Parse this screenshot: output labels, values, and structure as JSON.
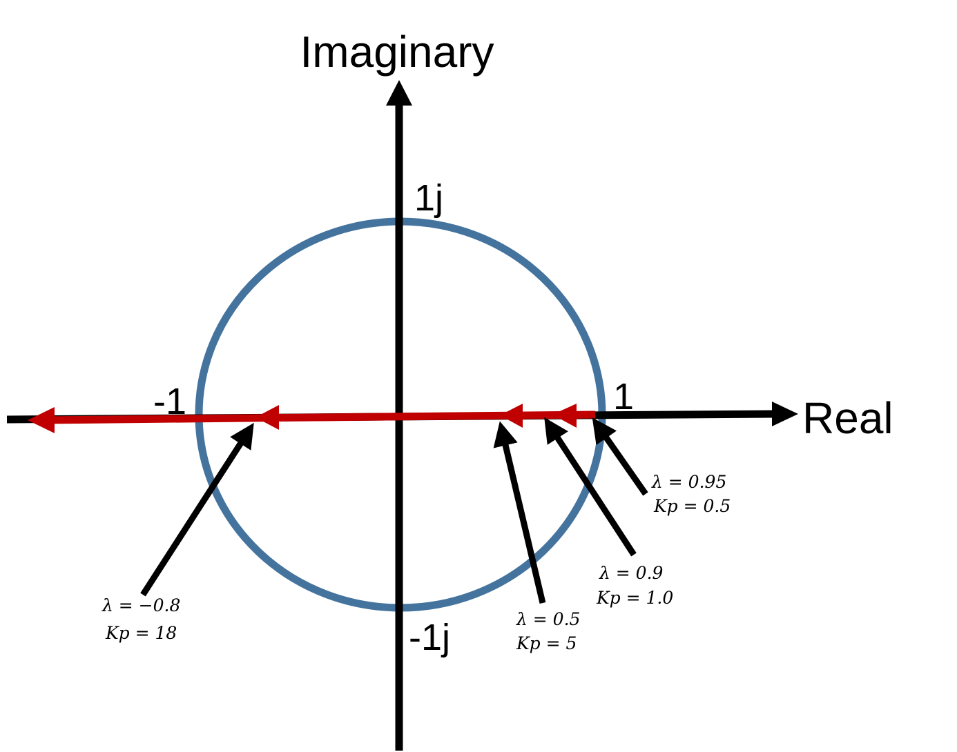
{
  "axes": {
    "imaginary_label": "Imaginary",
    "real_label": "Real",
    "tick_pos_imag": "1j",
    "tick_neg_imag": "-1j",
    "tick_neg_real": "-1",
    "tick_pos_real": "1"
  },
  "colors": {
    "unit_circle": "#44739e",
    "locus": "#c00000",
    "axes": "#000000"
  },
  "annotations": [
    {
      "lambda": "λ = −0.8",
      "kp": "Kp = 18"
    },
    {
      "lambda": "λ = 0.5",
      "kp": "Kp = 5"
    },
    {
      "lambda": "λ = 0.9",
      "kp": "Kp = 1.0"
    },
    {
      "lambda": "λ = 0.95",
      "kp": "Kp = 0.5"
    }
  ]
}
